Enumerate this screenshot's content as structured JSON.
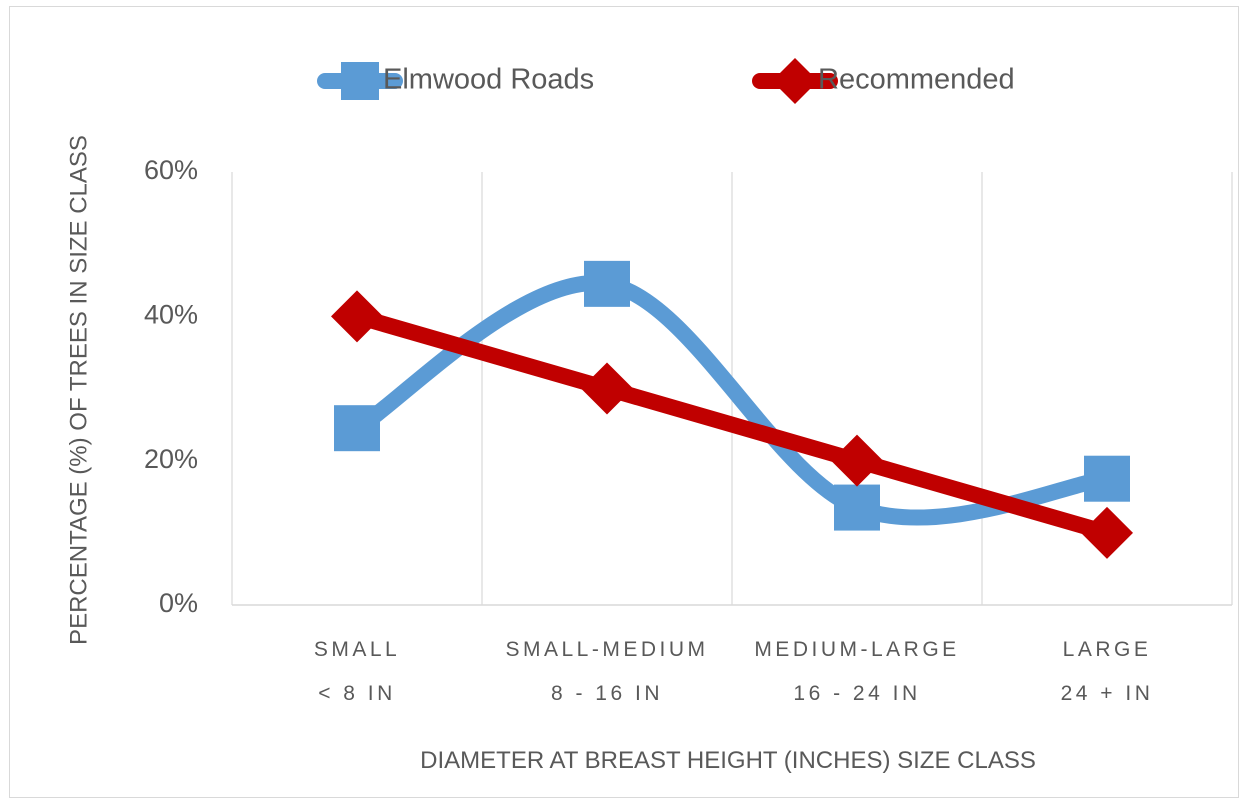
{
  "chart_data": {
    "type": "line",
    "xlabel": "DIAMETER AT BREAST HEIGHT (INCHES) SIZE CLASS",
    "ylabel": "PERCENTAGE (%) OF TREES IN SIZE CLASS",
    "categories": [
      {
        "line1": "SMALL",
        "line2": "< 8 IN"
      },
      {
        "line1": "SMALL-MEDIUM",
        "line2": "8 - 16 IN"
      },
      {
        "line1": "MEDIUM-LARGE",
        "line2": "16 - 24 IN"
      },
      {
        "line1": "LARGE",
        "line2": "24 + IN"
      }
    ],
    "y_ticks": [
      "0%",
      "20%",
      "40%",
      "60%"
    ],
    "ylim": [
      0,
      60
    ],
    "grid": "vertical",
    "legend_position": "top",
    "series": [
      {
        "name": "Elmwood Roads",
        "values": [
          24.5,
          44.5,
          13.5,
          17.5
        ],
        "color": "#5b9bd5",
        "marker": "square",
        "smooth": true
      },
      {
        "name": "Recommended",
        "values": [
          40,
          30,
          20,
          10
        ],
        "color": "#c00000",
        "marker": "diamond",
        "smooth": false
      }
    ]
  }
}
